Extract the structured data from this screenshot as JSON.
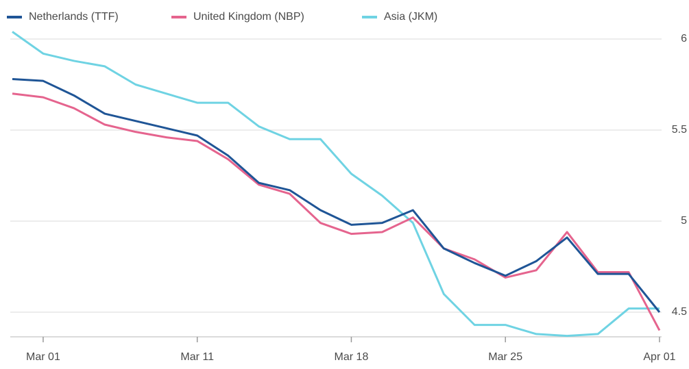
{
  "chart_data": {
    "type": "line",
    "categories": [
      null,
      "Mar 01",
      null,
      null,
      null,
      null,
      "Mar 11",
      null,
      null,
      null,
      null,
      "Mar 18",
      null,
      null,
      null,
      null,
      "Mar 25",
      null,
      null,
      null,
      null,
      "Apr 01"
    ],
    "series": [
      {
        "name": "Netherlands (TTF)",
        "color": "#1f5596",
        "values": [
          5.78,
          5.77,
          5.69,
          5.59,
          5.55,
          5.51,
          5.47,
          5.36,
          5.21,
          5.17,
          5.06,
          4.98,
          4.99,
          5.06,
          4.85,
          4.77,
          4.7,
          4.78,
          4.91,
          4.71,
          4.71,
          4.5
        ]
      },
      {
        "name": "United Kingdom (NBP)",
        "color": "#e5648e",
        "values": [
          5.7,
          5.68,
          5.62,
          5.53,
          5.49,
          5.46,
          5.44,
          5.34,
          5.2,
          5.15,
          4.99,
          4.93,
          4.94,
          5.02,
          4.85,
          4.79,
          4.69,
          4.73,
          4.94,
          4.72,
          4.72,
          4.4
        ]
      },
      {
        "name": "Asia (JKM)",
        "color": "#6fd3e3",
        "values": [
          6.04,
          5.92,
          5.88,
          5.85,
          5.75,
          5.7,
          5.65,
          5.65,
          5.52,
          5.45,
          5.45,
          5.26,
          5.14,
          4.99,
          4.6,
          4.43,
          4.43,
          4.38,
          4.37,
          4.38,
          4.52,
          4.52
        ]
      }
    ],
    "ylim": [
      4.35,
      6.05
    ],
    "yticks": [
      4.5,
      5,
      5.5,
      6
    ],
    "grid": true
  }
}
